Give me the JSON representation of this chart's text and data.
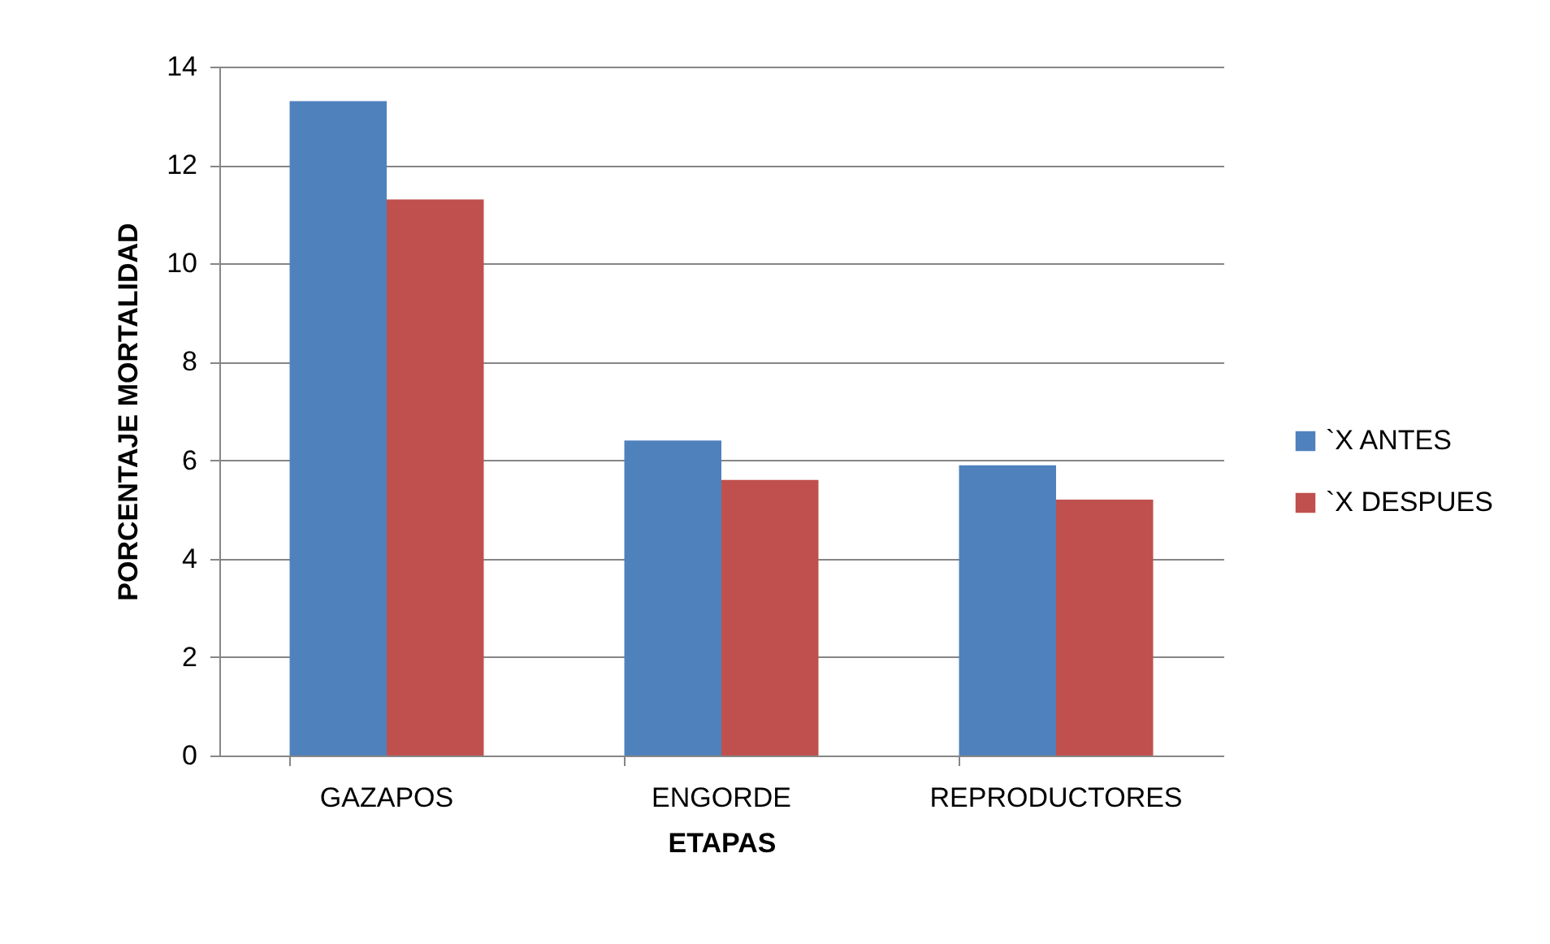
{
  "chart_data": {
    "type": "bar",
    "xlabel": "ETAPAS",
    "ylabel": "PORCENTAJE MORTALIDAD",
    "categories": [
      "GAZAPOS",
      "ENGORDE",
      "REPRODUCTORES"
    ],
    "series": [
      {
        "name": "`X ANTES",
        "color": "#4f81bd",
        "values": [
          13.3,
          6.4,
          5.9
        ]
      },
      {
        "name": "`X DESPUES",
        "color": "#c0504d",
        "values": [
          11.3,
          5.6,
          5.2
        ]
      }
    ],
    "ylim": [
      0,
      14
    ],
    "yticks": [
      0,
      2,
      4,
      6,
      8,
      10,
      12,
      14
    ],
    "grid": "y",
    "legend": "right"
  }
}
